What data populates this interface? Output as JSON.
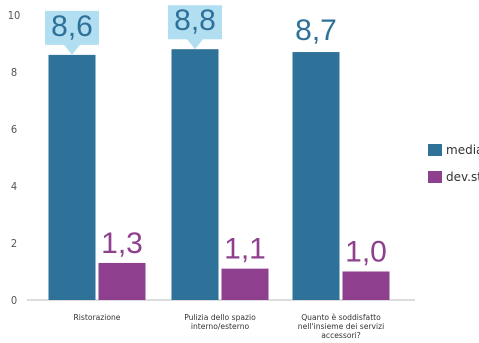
{
  "chart_data": {
    "type": "bar",
    "categories": [
      [
        "Ristorazione"
      ],
      [
        "Pulizia dello spazio",
        "interno/esterno"
      ],
      [
        "Quanto è soddisfatto",
        "nell'insieme dei servizi",
        "accessori?"
      ]
    ],
    "series": [
      {
        "name": "media",
        "values": [
          8.6,
          8.8,
          8.7
        ],
        "labels": [
          "8,6",
          "8,8",
          "8,7"
        ],
        "color": "#2e7199"
      },
      {
        "name": "dev.st",
        "values": [
          1.3,
          1.1,
          1.0
        ],
        "labels": [
          "1,3",
          "1,1",
          "1,0"
        ],
        "color": "#8e3f8e"
      }
    ],
    "highlight_labels": {
      "series": 0,
      "indices": [
        0,
        1
      ],
      "color": "#b2def2"
    },
    "ylim": [
      0,
      10
    ],
    "yticks": [
      "0",
      "2",
      "4",
      "6",
      "8",
      "10"
    ],
    "grid": false,
    "legend_position": "right"
  }
}
